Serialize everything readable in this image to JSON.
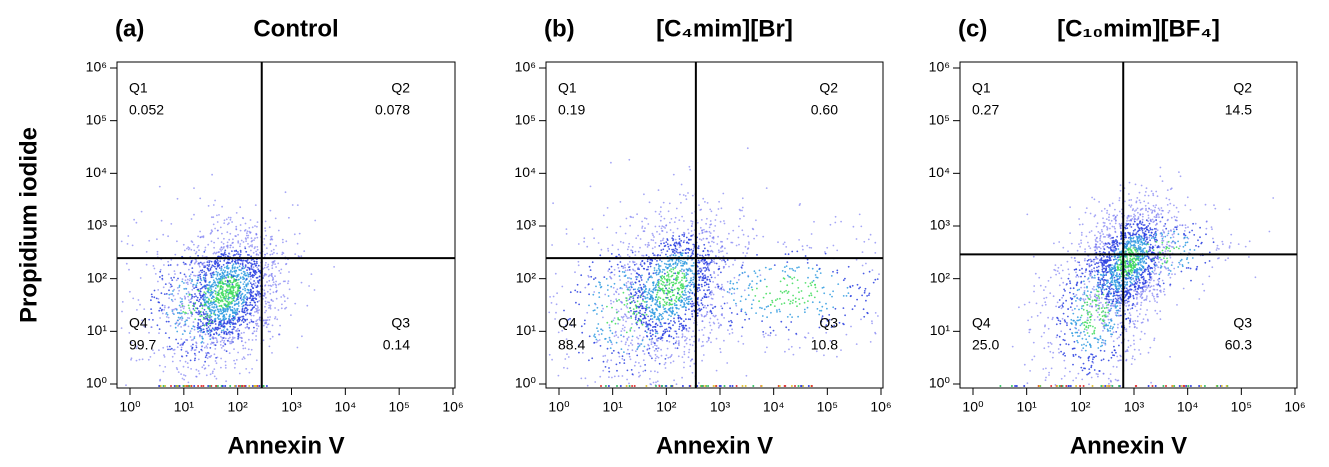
{
  "chart_data": [
    {
      "type": "scatter",
      "panel_label": "(a)",
      "title": "Control",
      "xlabel": "Annexin V",
      "ylabel": "Propidium iodide",
      "xscale": "log",
      "yscale": "log",
      "xlim": [
        1,
        1000000
      ],
      "ylim": [
        1,
        1000000
      ],
      "xticks": [
        {
          "value": 1,
          "label": "10⁰"
        },
        {
          "value": 10,
          "label": "10¹"
        },
        {
          "value": 100,
          "label": "10²"
        },
        {
          "value": 1000,
          "label": "10³"
        },
        {
          "value": 10000,
          "label": "10⁴"
        },
        {
          "value": 100000,
          "label": "10⁵"
        },
        {
          "value": 1000000,
          "label": "10⁶"
        }
      ],
      "yticks": [
        {
          "value": 1,
          "label": "10⁰"
        },
        {
          "value": 10,
          "label": "10¹"
        },
        {
          "value": 100,
          "label": "10²"
        },
        {
          "value": 1000,
          "label": "10³"
        },
        {
          "value": 10000,
          "label": "10⁴"
        },
        {
          "value": 100000,
          "label": "10⁵"
        },
        {
          "value": 1000000,
          "label": "10⁶"
        }
      ],
      "gates": {
        "x": 280,
        "y": 245
      },
      "quadrants": [
        "Q1",
        "Q2",
        "Q3",
        "Q4"
      ],
      "values": [
        0.052,
        0.078,
        0.14,
        99.7
      ],
      "value_labels": [
        "0.052",
        "0.078",
        "0.14",
        "99.7"
      ]
    },
    {
      "type": "scatter",
      "panel_label": "(b)",
      "title": "[C₄mim][Br]",
      "xlabel": "Annexin V",
      "xscale": "log",
      "yscale": "log",
      "xlim": [
        1,
        1000000
      ],
      "ylim": [
        1,
        1000000
      ],
      "xticks": [
        {
          "value": 1,
          "label": "10⁰"
        },
        {
          "value": 10,
          "label": "10¹"
        },
        {
          "value": 100,
          "label": "10²"
        },
        {
          "value": 1000,
          "label": "10³"
        },
        {
          "value": 10000,
          "label": "10⁴"
        },
        {
          "value": 100000,
          "label": "10⁵"
        },
        {
          "value": 1000000,
          "label": "10⁶"
        }
      ],
      "yticks": [
        {
          "value": 1,
          "label": "10⁰"
        },
        {
          "value": 10,
          "label": "10¹"
        },
        {
          "value": 100,
          "label": "10²"
        },
        {
          "value": 1000,
          "label": "10³"
        },
        {
          "value": 10000,
          "label": "10⁴"
        },
        {
          "value": 100000,
          "label": "10⁵"
        },
        {
          "value": 1000000,
          "label": "10⁶"
        }
      ],
      "gates": {
        "x": 355,
        "y": 245
      },
      "quadrants": [
        "Q1",
        "Q2",
        "Q3",
        "Q4"
      ],
      "values": [
        0.19,
        0.6,
        10.8,
        88.4
      ],
      "value_labels": [
        "0.19",
        "0.60",
        "10.8",
        "88.4"
      ]
    },
    {
      "type": "scatter",
      "panel_label": "(c)",
      "title": "[C₁₀mim][BF₄]",
      "xlabel": "Annexin V",
      "xscale": "log",
      "yscale": "log",
      "xlim": [
        1,
        1000000
      ],
      "ylim": [
        1,
        1000000
      ],
      "xticks": [
        {
          "value": 1,
          "label": "10⁰"
        },
        {
          "value": 10,
          "label": "10¹"
        },
        {
          "value": 100,
          "label": "10²"
        },
        {
          "value": 1000,
          "label": "10³"
        },
        {
          "value": 10000,
          "label": "10⁴"
        },
        {
          "value": 100000,
          "label": "10⁵"
        },
        {
          "value": 1000000,
          "label": "10⁶"
        }
      ],
      "yticks": [
        {
          "value": 1,
          "label": "10⁰"
        },
        {
          "value": 10,
          "label": "10¹"
        },
        {
          "value": 100,
          "label": "10²"
        },
        {
          "value": 1000,
          "label": "10³"
        },
        {
          "value": 10000,
          "label": "10⁴"
        },
        {
          "value": 100000,
          "label": "10⁵"
        },
        {
          "value": 1000000,
          "label": "10⁶"
        }
      ],
      "gates": {
        "x": 630,
        "y": 290
      },
      "quadrants": [
        "Q1",
        "Q2",
        "Q3",
        "Q4"
      ],
      "values": [
        0.27,
        14.5,
        60.3,
        25
      ],
      "value_labels": [
        "0.27",
        "14.5",
        "60.3",
        "25.0"
      ]
    }
  ]
}
